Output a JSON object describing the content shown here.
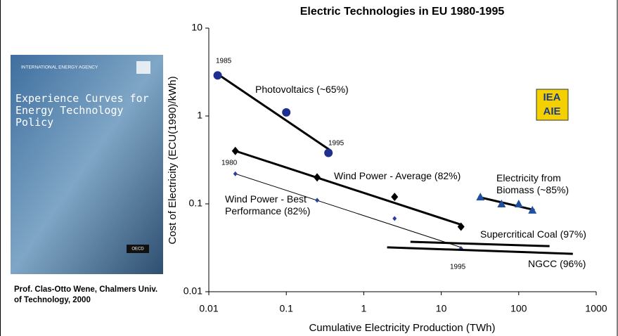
{
  "chart_data": {
    "type": "line",
    "title": "Electric Technologies in EU 1980-1995",
    "x_label": "Cumulative Electricity Production (TWh)",
    "y_label": "Cost of Electricity (ECU(1990)/kWh)",
    "log_x": true,
    "log_y": true,
    "grid": false,
    "xlim": [
      0.01,
      1000
    ],
    "xticks": [
      0.01,
      0.1,
      1,
      10,
      100,
      1000
    ],
    "ylim": [
      0.01,
      10
    ],
    "yticks": [
      0.01,
      0.1,
      1,
      10
    ],
    "series": [
      {
        "name": "Photovoltaics (~65%)",
        "color": "#1f2f8f",
        "marker": "circle",
        "x": [
          0.013,
          0.1,
          0.35
        ],
        "values": [
          2.9,
          1.1,
          0.38
        ],
        "trend": {
          "x": [
            0.013,
            0.38
          ],
          "values": [
            3.0,
            0.4
          ]
        }
      },
      {
        "name": "Wind Power - Average (82%)",
        "color": "#000000",
        "marker": "diamond",
        "x": [
          0.022,
          0.25,
          2.5,
          18
        ],
        "values": [
          0.4,
          0.2,
          0.12,
          0.055
        ],
        "trend": {
          "x": [
            0.022,
            18
          ],
          "values": [
            0.4,
            0.058
          ]
        }
      },
      {
        "name": "Wind Power - Best Performance (82%)",
        "color": "#2a3f9f",
        "marker": "small-diamond",
        "x": [
          0.022,
          0.25,
          2.5,
          18
        ],
        "values": [
          0.22,
          0.11,
          0.068,
          0.031
        ],
        "trend": {
          "x": [
            0.022,
            18
          ],
          "values": [
            0.22,
            0.032
          ]
        }
      },
      {
        "name": "Electricity from Biomass (~85%)",
        "color": "#1f4f9f",
        "marker": "triangle",
        "x": [
          32,
          60,
          100,
          150
        ],
        "values": [
          0.12,
          0.1,
          0.1,
          0.085
        ],
        "trend": {
          "x": [
            30,
            160
          ],
          "values": [
            0.12,
            0.085
          ]
        }
      },
      {
        "name": "Supercritical Coal (97%)",
        "color": "#000000",
        "marker": "none",
        "x": [],
        "values": [],
        "trend": {
          "x": [
            4,
            250
          ],
          "values": [
            0.037,
            0.033
          ]
        }
      },
      {
        "name": "NGCC (96%)",
        "color": "#000000",
        "marker": "none",
        "x": [],
        "values": [],
        "trend": {
          "x": [
            2,
            500
          ],
          "values": [
            0.032,
            0.027
          ]
        }
      }
    ],
    "annotations": [
      "1985",
      "1995",
      "1980",
      "1995"
    ]
  },
  "logo": {
    "top": "IEA",
    "bottom": "AIE"
  },
  "cover": {
    "agency": "INTERNATIONAL ENERGY AGENCY",
    "title": "Experience Curves for Energy Technology Policy",
    "publisher": "OECD"
  },
  "caption": "Prof. Clas-Otto Wene, Chalmers Univ. of Technology, 2000"
}
